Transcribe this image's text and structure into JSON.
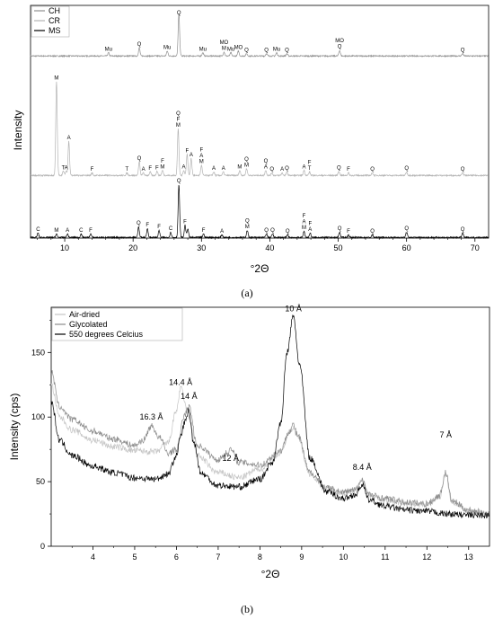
{
  "panels": {
    "a_caption": "(a)",
    "b_caption": "(b)"
  },
  "chart_data": [
    {
      "type": "line",
      "panel": "(a)",
      "xlabel": "°2Θ",
      "ylabel": "Intensity",
      "xlim": [
        5,
        72
      ],
      "xticks": [
        10,
        20,
        30,
        40,
        50,
        60,
        70
      ],
      "legend": {
        "placement": "top-left",
        "entries": [
          "CH",
          "CR",
          "MS"
        ]
      },
      "colors": {
        "CH": "#909090",
        "CR": "#b4b4b4",
        "MS": "#000000"
      },
      "series": [
        {
          "name": "CH",
          "peaks": [
            {
              "x": 16.4,
              "h": 4,
              "label": "Mu"
            },
            {
              "x": 20.9,
              "h": 10,
              "label": "Q"
            },
            {
              "x": 25.0,
              "h": 6,
              "label": "Mu"
            },
            {
              "x": 26.7,
              "h": 52,
              "label": "Q"
            },
            {
              "x": 30.2,
              "h": 4,
              "label": "Mu"
            },
            {
              "x": 33.3,
              "h": 5,
              "label": "MO\nM"
            },
            {
              "x": 34.3,
              "h": 4,
              "label": "Mu"
            },
            {
              "x": 35.4,
              "h": 6,
              "label": "MO"
            },
            {
              "x": 36.6,
              "h": 3,
              "label": "Q"
            },
            {
              "x": 39.5,
              "h": 3,
              "label": "Q"
            },
            {
              "x": 41.0,
              "h": 4,
              "label": "Mu"
            },
            {
              "x": 42.5,
              "h": 3,
              "label": "Q"
            },
            {
              "x": 50.2,
              "h": 7,
              "label": "MO\nQ"
            },
            {
              "x": 68.2,
              "h": 3,
              "label": "Q"
            }
          ]
        },
        {
          "name": "CR",
          "peaks": [
            {
              "x": 8.8,
              "h": 110,
              "label": "M"
            },
            {
              "x": 9.8,
              "h": 5,
              "label": "T"
            },
            {
              "x": 10.2,
              "h": 5,
              "label": "A"
            },
            {
              "x": 10.6,
              "h": 40,
              "label": "A"
            },
            {
              "x": 14.0,
              "h": 3,
              "label": "F"
            },
            {
              "x": 19.1,
              "h": 3,
              "label": "T"
            },
            {
              "x": 20.9,
              "h": 16,
              "label": "Q"
            },
            {
              "x": 21.5,
              "h": 3,
              "label": "A"
            },
            {
              "x": 22.5,
              "h": 4,
              "label": "F"
            },
            {
              "x": 23.5,
              "h": 5,
              "label": "F"
            },
            {
              "x": 24.3,
              "h": 6,
              "label": "F\nM"
            },
            {
              "x": 26.6,
              "h": 55,
              "label": "Q\nF\nM"
            },
            {
              "x": 27.4,
              "h": 6,
              "label": "A"
            },
            {
              "x": 27.9,
              "h": 25,
              "label": "F"
            },
            {
              "x": 28.5,
              "h": 20,
              "label": "A"
            },
            {
              "x": 30.0,
              "h": 12,
              "label": "F\nA\nM"
            },
            {
              "x": 31.8,
              "h": 4,
              "label": "A"
            },
            {
              "x": 33.2,
              "h": 4,
              "label": "A"
            },
            {
              "x": 35.6,
              "h": 6,
              "label": "M"
            },
            {
              "x": 36.6,
              "h": 8,
              "label": "Q\nM"
            },
            {
              "x": 39.4,
              "h": 6,
              "label": "Q\nA"
            },
            {
              "x": 40.3,
              "h": 3,
              "label": "Q"
            },
            {
              "x": 41.8,
              "h": 3,
              "label": "A"
            },
            {
              "x": 42.5,
              "h": 4,
              "label": "Q"
            },
            {
              "x": 45.0,
              "h": 6,
              "label": "A"
            },
            {
              "x": 45.8,
              "h": 4,
              "label": "F\nT"
            },
            {
              "x": 50.1,
              "h": 5,
              "label": "Q"
            },
            {
              "x": 51.5,
              "h": 3,
              "label": "F"
            },
            {
              "x": 55.0,
              "h": 3,
              "label": "Q"
            },
            {
              "x": 60.0,
              "h": 4,
              "label": "Q"
            },
            {
              "x": 68.2,
              "h": 3,
              "label": "Q"
            }
          ]
        },
        {
          "name": "MS",
          "peaks": [
            {
              "x": 6.1,
              "h": 5,
              "label": "C"
            },
            {
              "x": 8.8,
              "h": 4,
              "label": "M"
            },
            {
              "x": 10.4,
              "h": 4,
              "label": "A"
            },
            {
              "x": 12.4,
              "h": 4,
              "label": "C"
            },
            {
              "x": 13.8,
              "h": 4,
              "label": "F"
            },
            {
              "x": 20.8,
              "h": 12,
              "label": "Q"
            },
            {
              "x": 22.1,
              "h": 10,
              "label": "F"
            },
            {
              "x": 23.8,
              "h": 8,
              "label": "F"
            },
            {
              "x": 25.5,
              "h": 6,
              "label": "C"
            },
            {
              "x": 26.7,
              "h": 60,
              "label": "Q"
            },
            {
              "x": 27.6,
              "h": 14,
              "label": "F"
            },
            {
              "x": 28.0,
              "h": 10,
              "label": ""
            },
            {
              "x": 30.3,
              "h": 4,
              "label": "F"
            },
            {
              "x": 33.0,
              "h": 3,
              "label": "A"
            },
            {
              "x": 36.7,
              "h": 8,
              "label": "Q\nM"
            },
            {
              "x": 39.5,
              "h": 4,
              "label": "Q"
            },
            {
              "x": 40.4,
              "h": 4,
              "label": "Q"
            },
            {
              "x": 42.6,
              "h": 3,
              "label": "Q"
            },
            {
              "x": 45.0,
              "h": 7,
              "label": "F\nA\nM"
            },
            {
              "x": 45.9,
              "h": 5,
              "label": "F\nA"
            },
            {
              "x": 50.2,
              "h": 6,
              "label": "Q"
            },
            {
              "x": 51.5,
              "h": 3,
              "label": "F"
            },
            {
              "x": 55.0,
              "h": 3,
              "label": "Q"
            },
            {
              "x": 60.0,
              "h": 6,
              "label": "Q"
            },
            {
              "x": 68.2,
              "h": 5,
              "label": "Q"
            }
          ]
        }
      ]
    },
    {
      "type": "line",
      "panel": "(b)",
      "xlabel": "°2Θ",
      "ylabel": "Intensity (cps)",
      "xlim": [
        3,
        13.5
      ],
      "ylim": [
        0,
        185
      ],
      "xticks": [
        4,
        5,
        6,
        7,
        8,
        9,
        10,
        11,
        12,
        13
      ],
      "yticks": [
        0,
        50,
        100,
        150
      ],
      "legend": {
        "placement": "top-left",
        "entries": [
          "Air-dried",
          "Glycolated",
          "550 degrees Celcius"
        ]
      },
      "colors": {
        "Air-dried": "#c4c4c4",
        "Glycolated": "#8c8c8c",
        "550 degrees Celcius": "#000000"
      },
      "annotations": [
        {
          "x": 5.4,
          "y": 98,
          "text": "16.3 Å"
        },
        {
          "x": 6.1,
          "y": 125,
          "text": "14.4 Å"
        },
        {
          "x": 6.3,
          "y": 114,
          "text": "14 Å"
        },
        {
          "x": 7.3,
          "y": 66,
          "text": "12 Å"
        },
        {
          "x": 8.8,
          "y": 182,
          "text": "10 Å"
        },
        {
          "x": 10.45,
          "y": 59,
          "text": "8.4 Å"
        },
        {
          "x": 12.45,
          "y": 84,
          "text": "7 Å"
        }
      ],
      "series": [
        {
          "name": "Air-dried",
          "x": [
            3,
            3.2,
            3.5,
            4,
            4.5,
            5,
            5.5,
            5.8,
            6.0,
            6.1,
            6.3,
            6.5,
            7,
            7.5,
            8,
            8.5,
            8.7,
            8.8,
            8.9,
            9.2,
            9.6,
            10,
            10.3,
            10.45,
            10.6,
            11,
            11.5,
            12,
            12.3,
            12.45,
            12.6,
            13,
            13.5
          ],
          "y": [
            125,
            100,
            90,
            82,
            77,
            74,
            73,
            80,
            105,
            122,
            100,
            70,
            57,
            53,
            60,
            72,
            88,
            92,
            85,
            56,
            44,
            41,
            43,
            51,
            40,
            36,
            33,
            32,
            38,
            56,
            34,
            27,
            25
          ]
        },
        {
          "name": "Glycolated",
          "x": [
            3,
            3.2,
            3.5,
            4,
            4.5,
            5,
            5.2,
            5.4,
            5.6,
            5.8,
            6.0,
            6.2,
            6.3,
            6.5,
            7,
            7.2,
            7.3,
            7.5,
            8,
            8.5,
            8.7,
            8.8,
            8.9,
            9.2,
            9.6,
            10,
            10.3,
            10.45,
            10.6,
            11,
            11.5,
            12,
            12.3,
            12.45,
            12.6,
            13,
            13.5
          ],
          "y": [
            135,
            108,
            98,
            89,
            83,
            78,
            82,
            93,
            84,
            72,
            75,
            102,
            108,
            78,
            67,
            72,
            75,
            65,
            63,
            74,
            89,
            94,
            86,
            57,
            45,
            42,
            44,
            52,
            40,
            37,
            34,
            33,
            39,
            57,
            35,
            28,
            25
          ]
        },
        {
          "name": "550 degrees Celcius",
          "x": [
            3,
            3.2,
            3.5,
            4,
            4.5,
            5,
            5.5,
            5.8,
            6.0,
            6.1,
            6.2,
            6.3,
            6.4,
            6.6,
            7,
            7.5,
            8,
            8.3,
            8.5,
            8.65,
            8.8,
            8.95,
            9.2,
            9.6,
            10,
            10.3,
            10.45,
            10.6,
            11,
            11.5,
            12,
            12.5,
            13,
            13.5
          ],
          "y": [
            112,
            82,
            70,
            62,
            57,
            53,
            52,
            56,
            70,
            85,
            96,
            105,
            82,
            56,
            47,
            46,
            52,
            65,
            95,
            150,
            178,
            140,
            68,
            42,
            37,
            40,
            48,
            36,
            31,
            28,
            27,
            25,
            24,
            24
          ]
        }
      ]
    }
  ]
}
